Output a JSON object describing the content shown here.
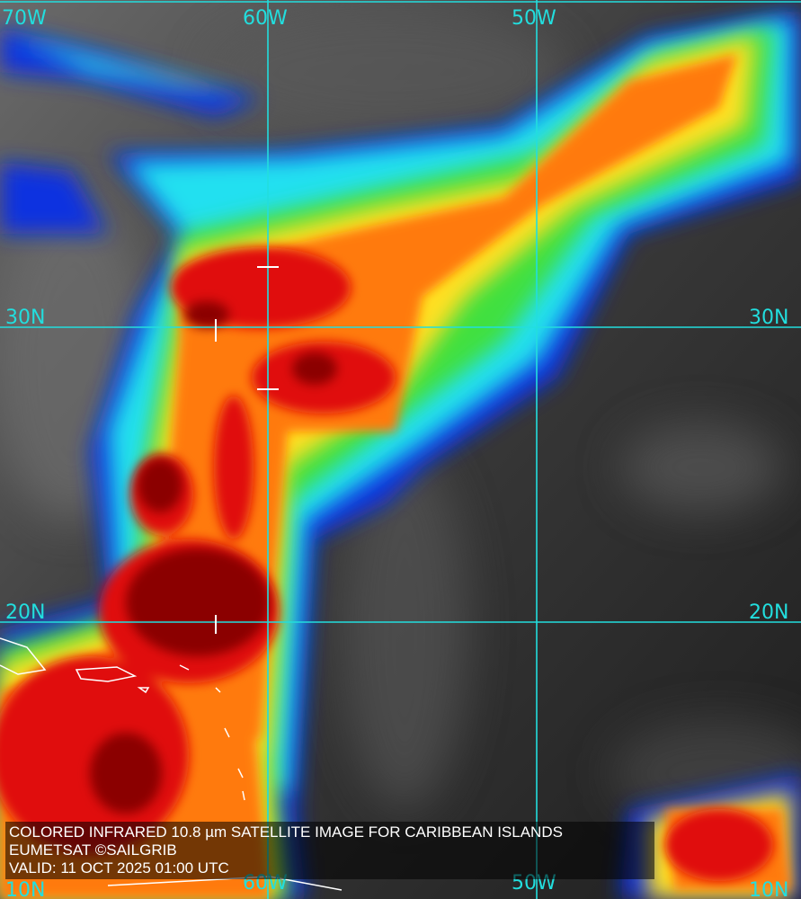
{
  "map": {
    "grid_color": "#22dede",
    "longitude_labels": [
      "70W",
      "60W",
      "50W"
    ],
    "latitude_labels": [
      "30N",
      "20N",
      "10N"
    ],
    "palette": [
      "#8b0000",
      "#e01010",
      "#ff7a10",
      "#ffe020",
      "#40e040",
      "#20e0f0",
      "#1030e0"
    ]
  },
  "caption": {
    "title": "COLORED INFRARED 10.8 µm SATELLITE IMAGE FOR CARIBBEAN ISLANDS",
    "source": "EUMETSAT ©SAILGRIB",
    "valid": "VALID:  11 OCT 2025 01:00 UTC"
  }
}
